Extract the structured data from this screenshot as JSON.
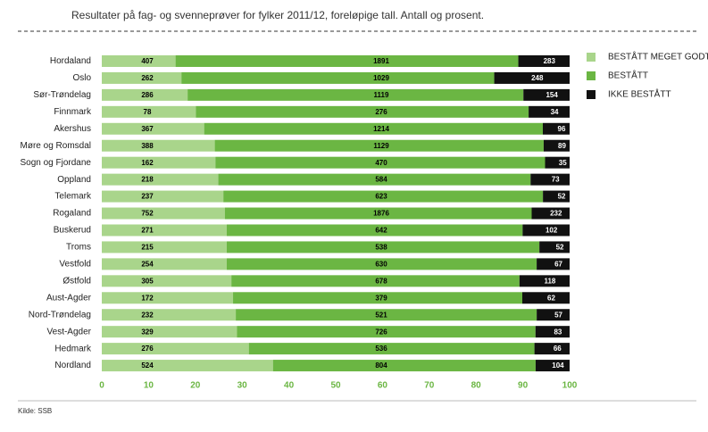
{
  "chart_data": {
    "type": "bar",
    "orientation": "horizontal",
    "stacking": "percent",
    "title": "Resultater på fag- og svenneprøver for fylker 2011/12, foreløpige tall. Antall og prosent.",
    "source": "Kilde: SSB",
    "categories": [
      "Hordaland",
      "Oslo",
      "Sør-Trøndelag",
      "Finnmark",
      "Akershus",
      "Møre og Romsdal",
      "Sogn og Fjordane",
      "Oppland",
      "Telemark",
      "Rogaland",
      "Buskerud",
      "Troms",
      "Vestfold",
      "Østfold",
      "Aust-Agder",
      "Nord-Trøndelag",
      "Vest-Agder",
      "Hedmark",
      "Nordland"
    ],
    "series": [
      {
        "name": "BESTÅTT MEGET GODT",
        "color": "#a9d58b",
        "label_color": "#000000",
        "values": [
          407,
          262,
          286,
          78,
          367,
          388,
          162,
          218,
          237,
          752,
          271,
          215,
          254,
          305,
          172,
          232,
          329,
          276,
          524
        ]
      },
      {
        "name": "BESTÅTT",
        "color": "#6bb643",
        "label_color": "#000000",
        "values": [
          1891,
          1029,
          1119,
          276,
          1214,
          1129,
          470,
          584,
          623,
          1876,
          642,
          538,
          630,
          678,
          379,
          521,
          726,
          536,
          804
        ]
      },
      {
        "name": "IKKE BESTÅTT",
        "color": "#111111",
        "label_color": "#ffffff",
        "values": [
          283,
          248,
          154,
          34,
          96,
          89,
          35,
          73,
          52,
          232,
          102,
          52,
          67,
          118,
          62,
          57,
          83,
          66,
          104
        ]
      }
    ],
    "xlim": [
      0,
      100
    ],
    "xticks": [
      0,
      10,
      20,
      30,
      40,
      50,
      60,
      70,
      80,
      90,
      100
    ],
    "tick_color": "#6bb643",
    "legend": "right"
  }
}
